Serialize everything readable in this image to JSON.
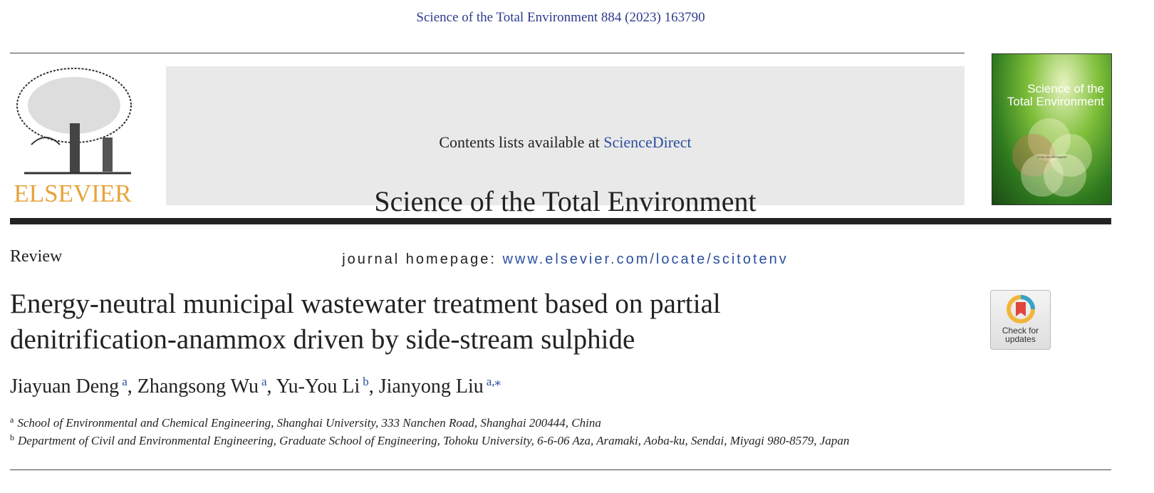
{
  "citation": "Science of the Total Environment 884 (2023) 163790",
  "header": {
    "publisher_logo": "ELSEVIER",
    "contents_prefix": "Contents lists available at ",
    "contents_link": "ScienceDirect",
    "journal_title": "Science of the Total Environment",
    "homepage_prefix": "journal homepage: ",
    "homepage_link": "www.elsevier.com/locate/scitotenv",
    "cover": {
      "title_line1": "Science of the",
      "title_line2": "Total Environment",
      "center_label": "TOTAL ENVIRONMENT"
    }
  },
  "article": {
    "type": "Review",
    "title": "Energy-neutral municipal wastewater treatment based on partial denitrification-anammox driven by side-stream sulphide",
    "check_updates": {
      "line1": "Check for",
      "line2": "updates"
    },
    "authors": [
      {
        "name": "Jiayuan Deng",
        "aff": "a"
      },
      {
        "name": "Zhangsong Wu",
        "aff": "a"
      },
      {
        "name": "Yu-You Li",
        "aff": "b"
      },
      {
        "name": "Jianyong Liu",
        "aff": "a,⁎"
      }
    ],
    "affiliations": [
      {
        "label": "a",
        "text": "School of Environmental and Chemical Engineering, Shanghai University, 333 Nanchen Road, Shanghai 200444, China"
      },
      {
        "label": "b",
        "text": "Department of Civil and Environmental Engineering, Graduate School of Engineering, Tohoku University, 6-6-06 Aza, Aramaki, Aoba-ku, Sendai, Miyagi 980-8579, Japan"
      }
    ]
  },
  "colors": {
    "link": "#2c4f9e",
    "elsevier_orange": "#e8a33a",
    "banner_grey": "#e9e9e9"
  }
}
